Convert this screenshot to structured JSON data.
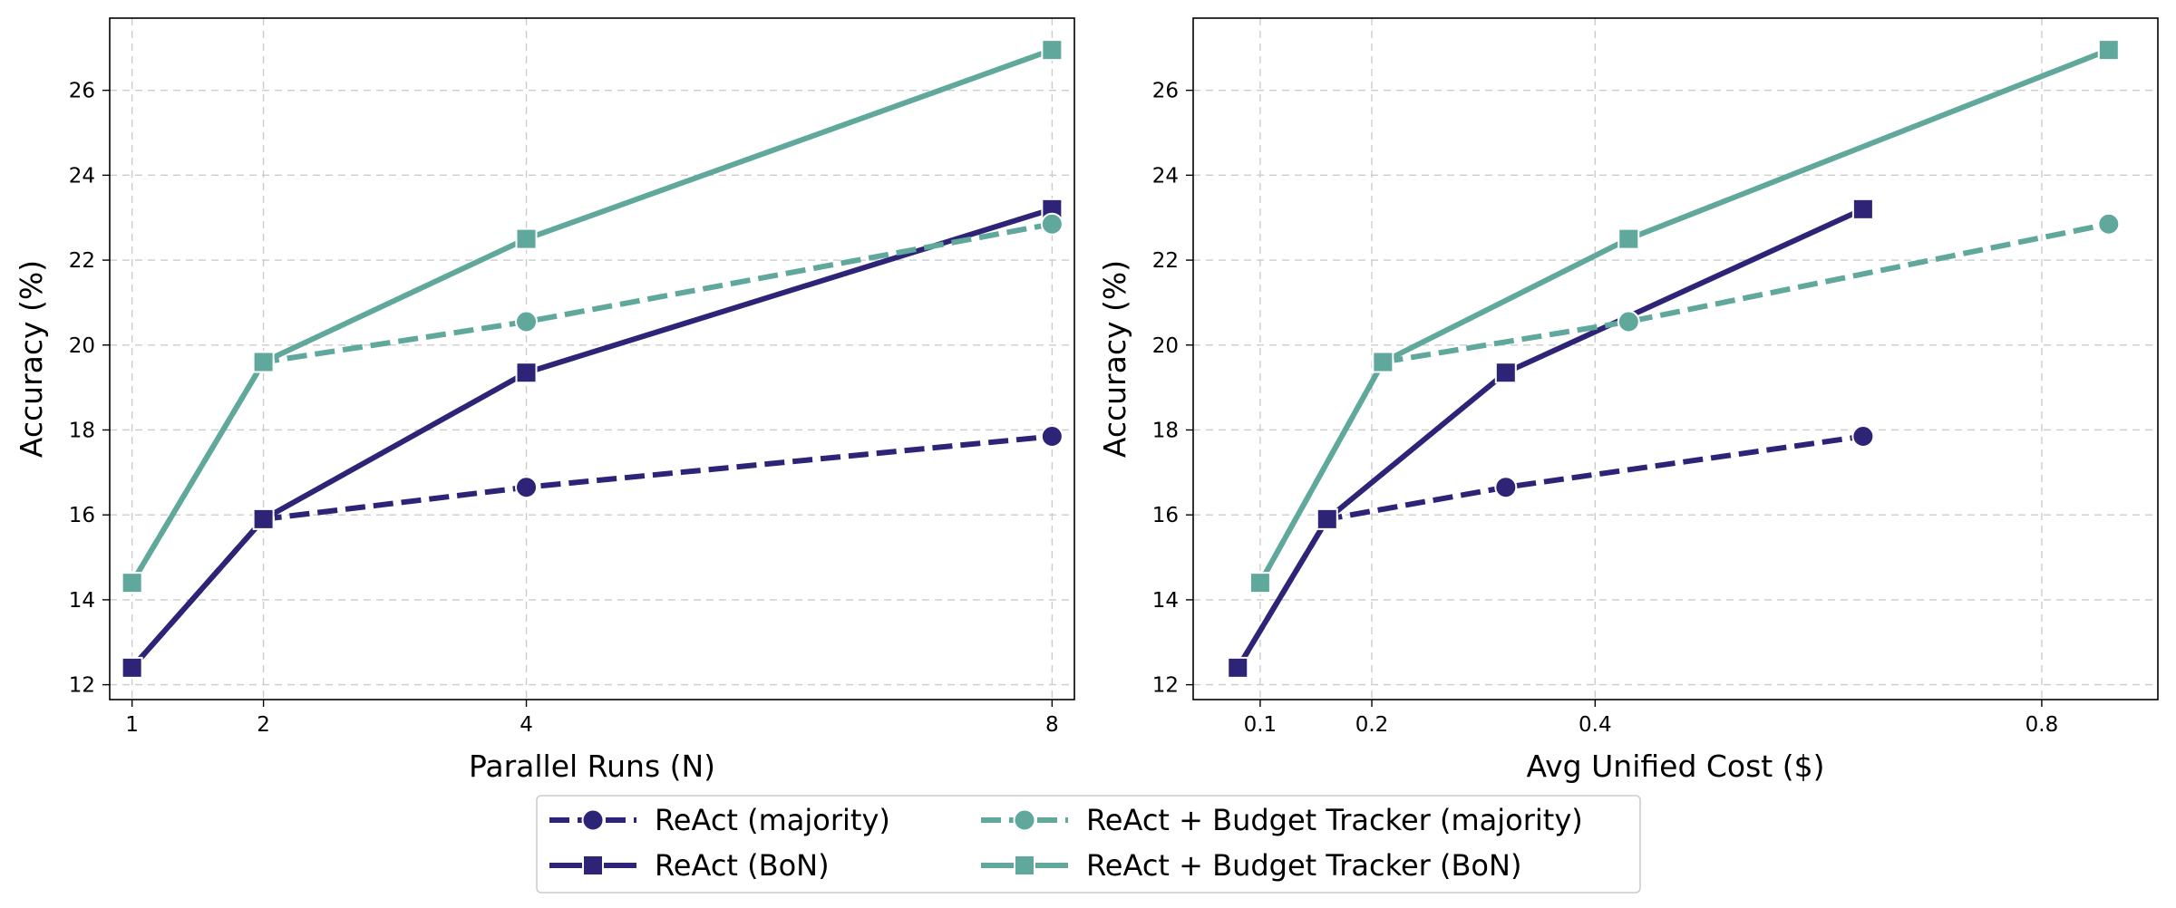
{
  "colors": {
    "react": "#2d2478",
    "budget": "#5fa89b"
  },
  "chart_data": [
    {
      "type": "line",
      "title": "",
      "xlabel": "Parallel Runs (N)",
      "ylabel": "Accuracy (%)",
      "xlim": [
        0.83,
        8.17
      ],
      "ylim": [
        11.65,
        27.7
      ],
      "xticks": [
        1,
        2,
        4,
        8
      ],
      "xtick_labels": [
        "1",
        "2",
        "4",
        "8"
      ],
      "yticks": [
        12,
        14,
        16,
        18,
        20,
        22,
        24,
        26
      ],
      "ytick_labels": [
        "12",
        "14",
        "16",
        "18",
        "20",
        "22",
        "24",
        "26"
      ],
      "grid": true,
      "series": [
        {
          "name": "ReAct (majority)",
          "color_key": "react",
          "line_style": "dashed",
          "marker": "circle",
          "x": [
            1,
            2,
            4,
            8
          ],
          "y": [
            12.4,
            15.9,
            16.65,
            17.85
          ]
        },
        {
          "name": "ReAct (BoN)",
          "color_key": "react",
          "line_style": "solid",
          "marker": "square",
          "x": [
            1,
            2,
            4,
            8
          ],
          "y": [
            12.4,
            15.9,
            19.35,
            23.2
          ]
        },
        {
          "name": "ReAct + Budget Tracker (majority)",
          "color_key": "budget",
          "line_style": "dashed",
          "marker": "circle",
          "x": [
            1,
            2,
            4,
            8
          ],
          "y": [
            14.4,
            19.6,
            20.55,
            22.85
          ]
        },
        {
          "name": "ReAct + Budget Tracker (BoN)",
          "color_key": "budget",
          "line_style": "solid",
          "marker": "square",
          "x": [
            1,
            2,
            4,
            8
          ],
          "y": [
            14.4,
            19.6,
            22.5,
            26.95
          ]
        }
      ]
    },
    {
      "type": "line",
      "title": "",
      "xlabel": "Avg Unified Cost ($)",
      "ylabel": "Accuracy (%)",
      "xlim": [
        0.04,
        0.904
      ],
      "ylim": [
        11.65,
        27.7
      ],
      "xticks": [
        0.1,
        0.2,
        0.4,
        0.8
      ],
      "xtick_labels": [
        "0.1",
        "0.2",
        "0.4",
        "0.8"
      ],
      "yticks": [
        12,
        14,
        16,
        18,
        20,
        22,
        24,
        26
      ],
      "ytick_labels": [
        "12",
        "14",
        "16",
        "18",
        "20",
        "22",
        "24",
        "26"
      ],
      "grid": true,
      "series": [
        {
          "name": "ReAct (majority)",
          "color_key": "react",
          "line_style": "dashed",
          "marker": "circle",
          "x": [
            0.08,
            0.16,
            0.32,
            0.64
          ],
          "y": [
            12.4,
            15.9,
            16.65,
            17.85
          ]
        },
        {
          "name": "ReAct (BoN)",
          "color_key": "react",
          "line_style": "solid",
          "marker": "square",
          "x": [
            0.08,
            0.16,
            0.32,
            0.64
          ],
          "y": [
            12.4,
            15.9,
            19.35,
            23.2
          ]
        },
        {
          "name": "ReAct + Budget Tracker (majority)",
          "color_key": "budget",
          "line_style": "dashed",
          "marker": "circle",
          "x": [
            0.1,
            0.21,
            0.43,
            0.86
          ],
          "y": [
            14.4,
            19.6,
            20.55,
            22.85
          ]
        },
        {
          "name": "ReAct + Budget Tracker (BoN)",
          "color_key": "budget",
          "line_style": "solid",
          "marker": "square",
          "x": [
            0.1,
            0.21,
            0.43,
            0.86
          ],
          "y": [
            14.4,
            19.6,
            22.5,
            26.95
          ]
        }
      ]
    }
  ],
  "legend": {
    "placement": "bottom-center",
    "columns": 2,
    "entries": [
      {
        "label": "ReAct (majority)",
        "color_key": "react",
        "line_style": "dashed",
        "marker": "circle"
      },
      {
        "label": "ReAct (BoN)",
        "color_key": "react",
        "line_style": "solid",
        "marker": "square"
      },
      {
        "label": "ReAct + Budget Tracker (majority)",
        "color_key": "budget",
        "line_style": "dashed",
        "marker": "circle"
      },
      {
        "label": "ReAct + Budget Tracker (BoN)",
        "color_key": "budget",
        "line_style": "solid",
        "marker": "square"
      }
    ]
  }
}
